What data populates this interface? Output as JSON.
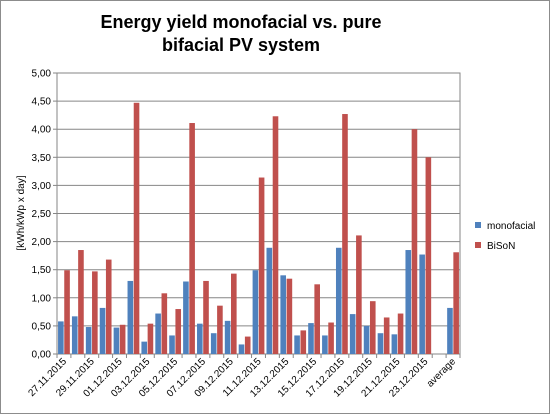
{
  "chart_data": {
    "type": "bar",
    "title": [
      "Energy yield monofacial vs. pure",
      "bifacial PV  system"
    ],
    "ylabel": "[kWh/kWp x day]",
    "xlabel": "",
    "ylim": [
      0,
      5
    ],
    "ytick_step": 0.5,
    "ytick_labels": [
      "0,00",
      "0,50",
      "1,00",
      "1,50",
      "2,00",
      "2,50",
      "3,00",
      "3,50",
      "4,00",
      "4,50",
      "5,00"
    ],
    "grid": true,
    "legend_position": "right",
    "categories": [
      "27.11.2015",
      "",
      "29.11.2015",
      "",
      "01.12.2015",
      "",
      "03.12.2015",
      "",
      "05.12.2015",
      "",
      "07.12.2015",
      "",
      "09.12.2015",
      "",
      "11.12.2015",
      "",
      "13.12.2015",
      "",
      "15.12.2015",
      "",
      "17.12.2015",
      "",
      "19.12.2015",
      "",
      "21.12.2015",
      "",
      "23.12.2015",
      "",
      "average"
    ],
    "series": [
      {
        "name": "monofacial",
        "color": "#4f81bd",
        "values": [
          0.58,
          0.67,
          0.48,
          0.82,
          0.47,
          1.3,
          0.22,
          0.72,
          0.33,
          1.29,
          0.54,
          0.37,
          0.59,
          0.17,
          1.49,
          1.89,
          1.4,
          0.33,
          0.55,
          0.33,
          1.89,
          0.71,
          0.5,
          0.37,
          0.35,
          1.85,
          1.77,
          null,
          0.82
        ]
      },
      {
        "name": "BiSoN",
        "color": "#c0504d",
        "values": [
          1.49,
          1.85,
          1.47,
          1.68,
          0.52,
          4.47,
          0.54,
          1.08,
          0.8,
          4.11,
          1.3,
          0.86,
          1.43,
          0.31,
          3.14,
          4.23,
          1.34,
          0.42,
          1.24,
          0.56,
          4.27,
          2.11,
          0.94,
          0.65,
          0.72,
          4.0,
          3.5,
          null,
          1.81
        ]
      }
    ]
  }
}
